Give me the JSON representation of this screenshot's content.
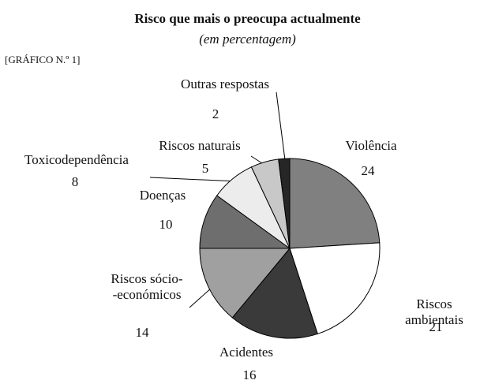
{
  "chart_data": {
    "type": "pie",
    "title": "Risco que mais o preocupa actualmente",
    "subtitle": "(em percentagem)",
    "annotation": "[GRÁFICO N.º 1]",
    "categories": [
      "Violência",
      "Riscos ambientais",
      "Acidentes",
      "Riscos sócio-\n-económicos",
      "Doenças",
      "Toxicodependência",
      "Riscos naturais",
      "Outras respostas"
    ],
    "values": [
      24,
      21,
      16,
      14,
      10,
      8,
      5,
      2
    ],
    "colors": [
      "#808080",
      "#ffffff",
      "#3a3a3a",
      "#a0a0a0",
      "#6e6e6e",
      "#ececec",
      "#c8c8c8",
      "#262626"
    ]
  }
}
